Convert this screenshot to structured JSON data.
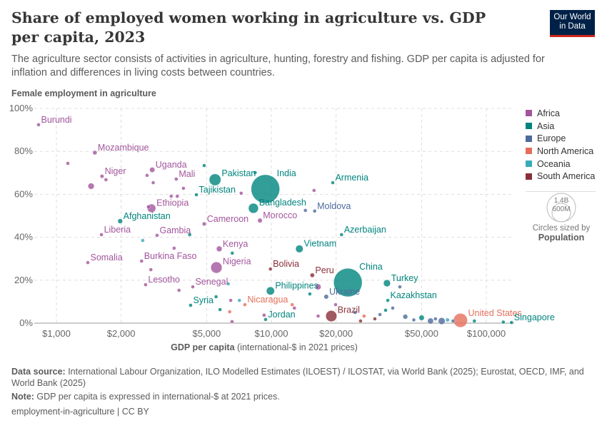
{
  "header": {
    "title": "Share of employed women working in agriculture vs. GDP per capita, 2023",
    "subtitle": "The agriculture sector consists of activities in agriculture, hunting, forestry and fishing. GDP per capita is adjusted for inflation and differences in living costs between countries.",
    "logo_line1": "Our World",
    "logo_line2": "in Data"
  },
  "chart_data": {
    "type": "scatter",
    "title": "Share of employed women working in agriculture vs. GDP per capita, 2023",
    "ylabel": "Female employment in agriculture",
    "xlabel_bold": "GDP per capita",
    "xlabel_rest": " (international-$ in 2021 prices)",
    "x_scale": "log",
    "xlim": [
      790,
      134000
    ],
    "ylim": [
      0,
      100
    ],
    "x_ticks": [
      1000,
      2000,
      5000,
      10000,
      20000,
      50000,
      100000
    ],
    "x_tick_labels": [
      "$1,000",
      "$2,000",
      "$5,000",
      "$10,000",
      "$20,000",
      "$50,000",
      "$100,000"
    ],
    "y_ticks": [
      0,
      20,
      40,
      60,
      80,
      100
    ],
    "y_tick_labels": [
      "0%",
      "20%",
      "40%",
      "60%",
      "80%",
      "100%"
    ],
    "grid": true,
    "legend_placement": "right",
    "colors": {
      "Africa": "#a2559c",
      "Asia": "#00847e",
      "Europe": "#4c6a9c",
      "North America": "#e56e5a",
      "Oceania": "#38aaba",
      "South America": "#883039"
    },
    "legend": [
      "Africa",
      "Asia",
      "Europe",
      "North America",
      "Oceania",
      "South America"
    ],
    "size_legend": {
      "large": "1.4B",
      "small": "600M",
      "caption": "Circles sized by",
      "variable": "Population"
    },
    "points": [
      {
        "name": "Burundi",
        "gdp": 826,
        "share": 92.4,
        "continent": "Africa",
        "pop": 13
      },
      {
        "name": "Mozambique",
        "gdp": 1510,
        "share": 79.4,
        "continent": "Africa",
        "pop": 33
      },
      {
        "name": "Uganda",
        "gdp": 2790,
        "share": 71.4,
        "continent": "Africa",
        "pop": 48
      },
      {
        "name": "Niger",
        "gdp": 1630,
        "share": 68.4,
        "continent": "Africa",
        "pop": 26
      },
      {
        "name": "Mali",
        "gdp": 3610,
        "share": 67.1,
        "continent": "Africa",
        "pop": 23
      },
      {
        "name": "Ethiopia",
        "gdp": 2770,
        "share": 53.5,
        "continent": "Africa",
        "pop": 126
      },
      {
        "name": "Afghanistan",
        "gdp": 1980,
        "share": 47.5,
        "continent": "Asia",
        "pop": 41
      },
      {
        "name": "Liberia",
        "gdp": 1620,
        "share": 41.2,
        "continent": "Africa",
        "pop": 5
      },
      {
        "name": "Gambia",
        "gdp": 2940,
        "share": 40.9,
        "continent": "Africa",
        "pop": 3
      },
      {
        "name": "Cameroon",
        "gdp": 4870,
        "share": 46.2,
        "continent": "Africa",
        "pop": 28
      },
      {
        "name": "Pakistan",
        "gdp": 5470,
        "share": 66.8,
        "continent": "Asia",
        "pop": 240
      },
      {
        "name": "Tajikistan",
        "gdp": 4480,
        "share": 59.8,
        "continent": "Asia",
        "pop": 10
      },
      {
        "name": "India",
        "gdp": 9380,
        "share": 62.5,
        "continent": "Asia",
        "pop": 1430
      },
      {
        "name": "Bangladesh",
        "gdp": 8250,
        "share": 53.5,
        "continent": "Asia",
        "pop": 172
      },
      {
        "name": "Morocco",
        "gdp": 8850,
        "share": 47.8,
        "continent": "Africa",
        "pop": 37
      },
      {
        "name": "Armenia",
        "gdp": 19300,
        "share": 65.4,
        "continent": "Asia",
        "pop": 3
      },
      {
        "name": "Moldova",
        "gdp": 15900,
        "share": 52.2,
        "continent": "Europe",
        "pop": 3
      },
      {
        "name": "Azerbaijan",
        "gdp": 21200,
        "share": 41.2,
        "continent": "Asia",
        "pop": 10
      },
      {
        "name": "Vietnam",
        "gdp": 13500,
        "share": 34.6,
        "continent": "Asia",
        "pop": 99
      },
      {
        "name": "Somalia",
        "gdp": 1400,
        "share": 28.2,
        "continent": "Africa",
        "pop": 18
      },
      {
        "name": "Burkina Faso",
        "gdp": 2490,
        "share": 28.9,
        "continent": "Africa",
        "pop": 23
      },
      {
        "name": "Kenya",
        "gdp": 5720,
        "share": 34.6,
        "continent": "Africa",
        "pop": 55
      },
      {
        "name": "Nigeria",
        "gdp": 5550,
        "share": 25.9,
        "continent": "Africa",
        "pop": 223
      },
      {
        "name": "Bolivia",
        "gdp": 9900,
        "share": 25.2,
        "continent": "South America",
        "pop": 12
      },
      {
        "name": "Peru",
        "gdp": 15500,
        "share": 22.3,
        "continent": "South America",
        "pop": 34
      },
      {
        "name": "China",
        "gdp": 22700,
        "share": 18.9,
        "continent": "Asia",
        "pop": 1420
      },
      {
        "name": "Turkey",
        "gdp": 34500,
        "share": 18.6,
        "continent": "Asia",
        "pop": 85
      },
      {
        "name": "Lesotho",
        "gdp": 2600,
        "share": 17.9,
        "continent": "Africa",
        "pop": 2
      },
      {
        "name": "Senegal",
        "gdp": 4310,
        "share": 16.9,
        "continent": "Africa",
        "pop": 18
      },
      {
        "name": "Philippines",
        "gdp": 9900,
        "share": 15.0,
        "continent": "Asia",
        "pop": 115
      },
      {
        "name": "Ukraine",
        "gdp": 18000,
        "share": 12.3,
        "continent": "Europe",
        "pop": 37
      },
      {
        "name": "Kazakhstan",
        "gdp": 34800,
        "share": 10.6,
        "continent": "Asia",
        "pop": 20
      },
      {
        "name": "Syria",
        "gdp": 4210,
        "share": 8.3,
        "continent": "Asia",
        "pop": 23
      },
      {
        "name": "Nicaragua",
        "gdp": 7530,
        "share": 8.6,
        "continent": "North America",
        "pop": 7
      },
      {
        "name": "Brazil",
        "gdp": 19000,
        "share": 3.3,
        "continent": "South America",
        "pop": 216
      },
      {
        "name": "Jordan",
        "gdp": 9400,
        "share": 1.7,
        "continent": "Asia",
        "pop": 11
      },
      {
        "name": "United States",
        "gdp": 75800,
        "share": 1.3,
        "continent": "North America",
        "pop": 340
      },
      {
        "name": "Singapore",
        "gdp": 131000,
        "share": 0.3,
        "continent": "Asia",
        "pop": 6
      },
      {
        "gdp": 1130,
        "share": 74.4,
        "continent": "Africa",
        "pop": 5
      },
      {
        "gdp": 1450,
        "share": 63.8,
        "continent": "Africa",
        "pop": 67
      },
      {
        "gdp": 1700,
        "share": 66.8,
        "continent": "Africa",
        "pop": 10
      },
      {
        "gdp": 2640,
        "share": 68.8,
        "continent": "Africa",
        "pop": 8
      },
      {
        "gdp": 2820,
        "share": 65.4,
        "continent": "Africa",
        "pop": 10
      },
      {
        "gdp": 3900,
        "share": 62.8,
        "continent": "Africa",
        "pop": 6
      },
      {
        "gdp": 3420,
        "share": 59.1,
        "continent": "Africa",
        "pop": 6
      },
      {
        "gdp": 3650,
        "share": 59.1,
        "continent": "Africa",
        "pop": 6
      },
      {
        "gdp": 4870,
        "share": 73.4,
        "continent": "Asia",
        "pop": 6
      },
      {
        "gdp": 8400,
        "share": 70.1,
        "continent": "Asia",
        "pop": 4
      },
      {
        "gdp": 7240,
        "share": 60.5,
        "continent": "Africa",
        "pop": 10
      },
      {
        "gdp": 15800,
        "share": 61.8,
        "continent": "Africa",
        "pop": 3
      },
      {
        "gdp": 14400,
        "share": 52.5,
        "continent": "Europe",
        "pop": 3
      },
      {
        "gdp": 2680,
        "share": 54.2,
        "continent": "Africa",
        "pop": 8
      },
      {
        "gdp": 2520,
        "share": 38.5,
        "continent": "Oceania",
        "pop": 4
      },
      {
        "gdp": 4170,
        "share": 41.2,
        "continent": "Asia",
        "pop": 5
      },
      {
        "gdp": 3530,
        "share": 34.9,
        "continent": "Africa",
        "pop": 5
      },
      {
        "gdp": 6580,
        "share": 32.6,
        "continent": "Asia",
        "pop": 5
      },
      {
        "gdp": 2750,
        "share": 24.9,
        "continent": "Africa",
        "pop": 5
      },
      {
        "gdp": 3720,
        "share": 15.3,
        "continent": "Africa",
        "pop": 5
      },
      {
        "gdp": 6300,
        "share": 18.3,
        "continent": "Oceania",
        "pop": 3
      },
      {
        "gdp": 5530,
        "share": 12.3,
        "continent": "Asia",
        "pop": 5
      },
      {
        "gdp": 6470,
        "share": 10.6,
        "continent": "Africa",
        "pop": 5
      },
      {
        "gdp": 5770,
        "share": 6.3,
        "continent": "Asia",
        "pop": 5
      },
      {
        "gdp": 6400,
        "share": 5.3,
        "continent": "North America",
        "pop": 5
      },
      {
        "gdp": 6560,
        "share": 0.7,
        "continent": "Africa",
        "pop": 5
      },
      {
        "gdp": 7100,
        "share": 10.6,
        "continent": "Oceania",
        "pop": 3
      },
      {
        "gdp": 9250,
        "share": 3.7,
        "continent": "Africa",
        "pop": 5
      },
      {
        "gdp": 12500,
        "share": 8.6,
        "continent": "North America",
        "pop": 5
      },
      {
        "gdp": 12800,
        "share": 7.0,
        "continent": "Africa",
        "pop": 5
      },
      {
        "gdp": 15100,
        "share": 13.6,
        "continent": "Asia",
        "pop": 20
      },
      {
        "gdp": 16500,
        "share": 16.9,
        "continent": "Africa",
        "pop": 60
      },
      {
        "gdp": 16500,
        "share": 3.3,
        "continent": "Africa",
        "pop": 20
      },
      {
        "gdp": 19900,
        "share": 8.6,
        "continent": "Africa",
        "pop": 5
      },
      {
        "gdp": 24500,
        "share": 5.0,
        "continent": "Europe",
        "pop": 5
      },
      {
        "gdp": 26000,
        "share": 1.0,
        "continent": "South America",
        "pop": 20
      },
      {
        "gdp": 27000,
        "share": 3.3,
        "continent": "North America",
        "pop": 5
      },
      {
        "gdp": 30300,
        "share": 2.0,
        "continent": "South America",
        "pop": 5
      },
      {
        "gdp": 32000,
        "share": 4.0,
        "continent": "Europe",
        "pop": 5
      },
      {
        "gdp": 34000,
        "share": 6.0,
        "continent": "Asia",
        "pop": 5
      },
      {
        "gdp": 36700,
        "share": 7.0,
        "continent": "Europe",
        "pop": 5
      },
      {
        "gdp": 39600,
        "share": 16.9,
        "continent": "Europe",
        "pop": 5
      },
      {
        "gdp": 42000,
        "share": 3.0,
        "continent": "Europe",
        "pop": 40
      },
      {
        "gdp": 46000,
        "share": 1.5,
        "continent": "Europe",
        "pop": 10
      },
      {
        "gdp": 50000,
        "share": 2.5,
        "continent": "Asia",
        "pop": 50
      },
      {
        "gdp": 55000,
        "share": 1.0,
        "continent": "Europe",
        "pop": 60
      },
      {
        "gdp": 58000,
        "share": 2.0,
        "continent": "Europe",
        "pop": 10
      },
      {
        "gdp": 62000,
        "share": 1.0,
        "continent": "Europe",
        "pop": 80
      },
      {
        "gdp": 66000,
        "share": 1.5,
        "continent": "Oceania",
        "pop": 26
      },
      {
        "gdp": 70000,
        "share": 1.0,
        "continent": "Europe",
        "pop": 10
      },
      {
        "gdp": 88000,
        "share": 1.0,
        "continent": "Asia",
        "pop": 5
      },
      {
        "gdp": 120000,
        "share": 0.5,
        "continent": "Asia",
        "pop": 3
      }
    ]
  },
  "footer": {
    "source_label": "Data source:",
    "source_text": " International Labour Organization, ILO Modelled Estimates (ILOEST) / ILOSTAT, via World Bank (2025); Eurostat, OECD, IMF, and World Bank (2025)",
    "note_label": "Note:",
    "note_text": " GDP per capita is expressed in international-$ at 2021 prices.",
    "link": "employment-in-agriculture | CC BY"
  }
}
